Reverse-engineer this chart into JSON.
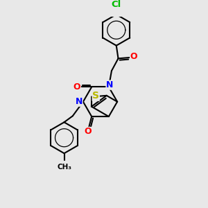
{
  "bg_color": "#e8e8e8",
  "bond_color": "#000000",
  "bond_width": 1.5,
  "atom_colors": {
    "N": "#0000ff",
    "O": "#ff0000",
    "S": "#b8b800",
    "Cl": "#00bb00",
    "C": "#000000"
  },
  "font_size": 9
}
